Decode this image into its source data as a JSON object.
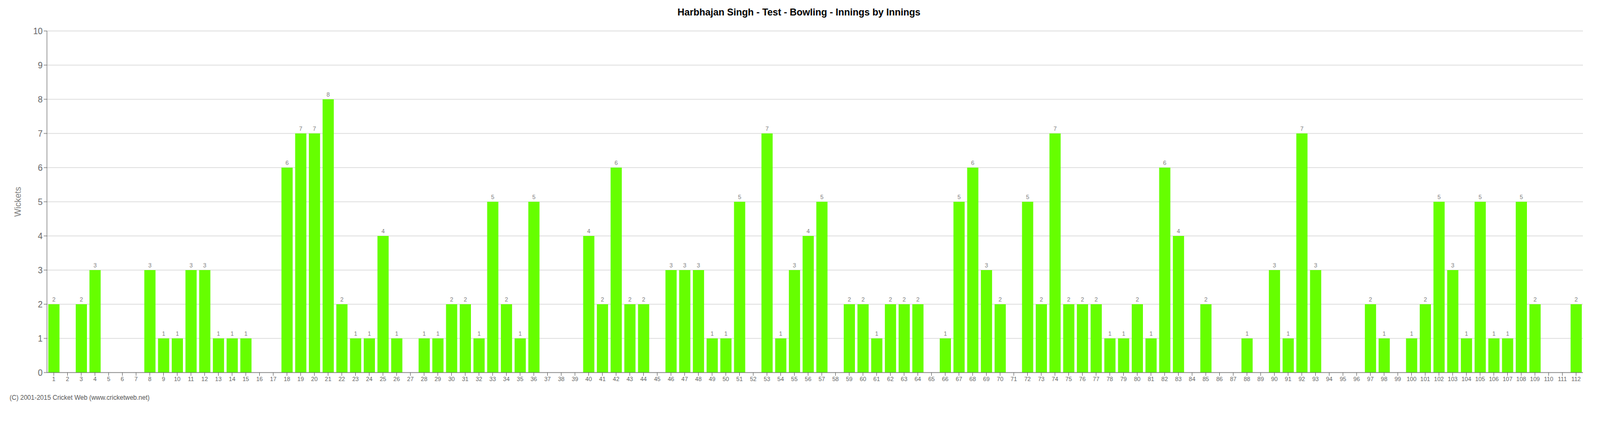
{
  "chart_data": {
    "type": "bar",
    "title": "Harbhajan Singh - Test - Bowling - Innings by Innings",
    "ylabel": "Wickets",
    "annotations": [
      "(C) 2001-2015 Cricket Web (www.cricketweb.net)"
    ],
    "categories": [
      "1",
      "2",
      "3",
      "4",
      "5",
      "6",
      "7",
      "8",
      "9",
      "10",
      "11",
      "12",
      "13",
      "14",
      "15",
      "16",
      "17",
      "18",
      "19",
      "20",
      "21",
      "22",
      "23",
      "24",
      "25",
      "26",
      "27",
      "28",
      "29",
      "30",
      "31",
      "32",
      "33",
      "34",
      "35",
      "36",
      "37",
      "38",
      "39",
      "40",
      "41",
      "42",
      "43",
      "44",
      "45",
      "46",
      "47",
      "48",
      "49",
      "50",
      "51",
      "52",
      "53",
      "54",
      "55",
      "56",
      "57",
      "58",
      "59",
      "60",
      "61",
      "62",
      "63",
      "64",
      "65",
      "66",
      "67",
      "68",
      "69",
      "70",
      "71",
      "72",
      "73",
      "74",
      "75",
      "76",
      "77",
      "78",
      "79",
      "80",
      "81",
      "82",
      "83",
      "84",
      "85",
      "86",
      "87",
      "88",
      "89",
      "90",
      "91",
      "92",
      "93",
      "94",
      "95",
      "96",
      "97",
      "98",
      "99",
      "100",
      "101",
      "102",
      "103",
      "104",
      "105",
      "106",
      "107",
      "108",
      "109",
      "110",
      "111",
      "112"
    ],
    "values": [
      2,
      0,
      2,
      3,
      0,
      0,
      0,
      3,
      1,
      1,
      3,
      3,
      1,
      1,
      1,
      0,
      0,
      6,
      7,
      7,
      8,
      2,
      1,
      1,
      4,
      1,
      0,
      1,
      1,
      2,
      2,
      1,
      5,
      2,
      1,
      5,
      0,
      0,
      0,
      4,
      2,
      6,
      2,
      2,
      0,
      3,
      3,
      3,
      1,
      1,
      5,
      0,
      7,
      1,
      3,
      4,
      5,
      0,
      2,
      2,
      1,
      2,
      2,
      2,
      0,
      1,
      5,
      6,
      3,
      2,
      0,
      5,
      2,
      7,
      2,
      2,
      2,
      1,
      1,
      2,
      1,
      6,
      4,
      0,
      2,
      0,
      0,
      1,
      0,
      3,
      1,
      7,
      3,
      0,
      0,
      0,
      2,
      1,
      0,
      1,
      2,
      5,
      3,
      1,
      5,
      1,
      1,
      5,
      2,
      0,
      0,
      2
    ],
    "color": "#66ff00",
    "ylim": [
      0,
      10
    ],
    "yticks": [
      0,
      1,
      2,
      3,
      4,
      5,
      6,
      7,
      8,
      9,
      10
    ],
    "grid": true,
    "data_labels": true
  }
}
